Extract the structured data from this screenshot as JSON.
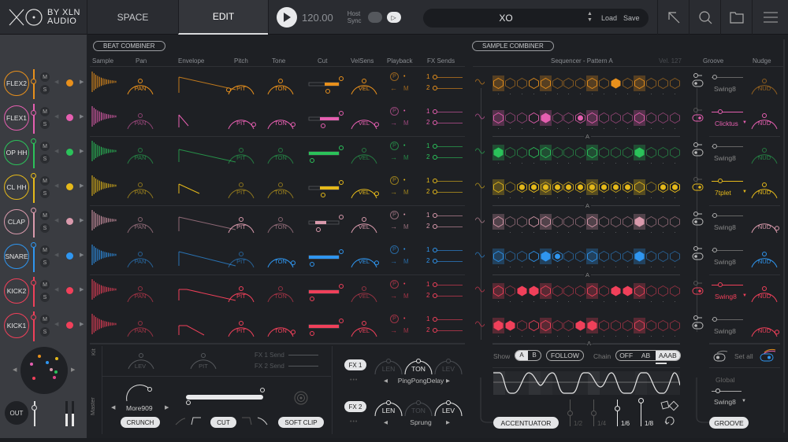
{
  "header": {
    "logo": "XO",
    "by_line_1": "BY XLN",
    "by_line_2": "AUDIO",
    "tabs": [
      {
        "label": "SPACE",
        "active": false
      },
      {
        "label": "EDIT",
        "active": true
      }
    ],
    "tempo": "120.00",
    "host_sync_line1": "Host",
    "host_sync_line2": "Sync",
    "preset_name": "XO",
    "load_label": "Load",
    "save_label": "Save",
    "icons": [
      "export-arrow-icon",
      "search-icon",
      "folder-icon",
      "menu-icon"
    ]
  },
  "beat_combiner": {
    "button_label": "BEAT COMBINER",
    "columns": [
      "Sample",
      "Pan",
      "Envelope",
      "Pitch",
      "Tone",
      "Cut",
      "VelSens",
      "Playback",
      "FX Sends"
    ]
  },
  "sample_combiner": {
    "button_label": "SAMPLE COMBINER",
    "sequencer_title": "Sequencer - Pattern A",
    "velocity": "Vel. 127",
    "groove_header": "Groove",
    "nudge_header": "Nudge"
  },
  "knob_labels": {
    "pan": "PAN",
    "pitch": "PIT",
    "tone": "TON",
    "vel": "VEL",
    "nudge": "NUD",
    "mute": "M",
    "solo": "S",
    "send1": "1",
    "send2": "2",
    "playback_m": "M",
    "playback_p": "P"
  },
  "channels": [
    {
      "name": "FLEX2",
      "color": "#e8901c",
      "groove": "Swing8",
      "groove_active": false,
      "steps": [
        2,
        0,
        0,
        1,
        2,
        0,
        0,
        0,
        2,
        0,
        3,
        0,
        2,
        0,
        0,
        0
      ]
    },
    {
      "name": "FLEX1",
      "color": "#e55fb0",
      "groove": "Clicktus",
      "groove_active": true,
      "steps": [
        2,
        0,
        0,
        1,
        3,
        0,
        0,
        4,
        2,
        0,
        0,
        0,
        2,
        0,
        0,
        0
      ]
    },
    {
      "name": "OP HH",
      "color": "#2bc25a",
      "groove": "Swing8",
      "groove_active": false,
      "steps": [
        3,
        0,
        0,
        1,
        2,
        0,
        0,
        0,
        2,
        0,
        0,
        0,
        3,
        0,
        0,
        0
      ]
    },
    {
      "name": "CL HH",
      "color": "#e5b91a",
      "groove": "7tplet",
      "groove_active": true,
      "steps": [
        2,
        0,
        4,
        5,
        4,
        4,
        4,
        4,
        4,
        4,
        4,
        4,
        2,
        0,
        4,
        5
      ]
    },
    {
      "name": "CLAP",
      "color": "#d99aac",
      "groove": "Swing8",
      "groove_active": false,
      "steps": [
        2,
        0,
        0,
        1,
        2,
        0,
        0,
        0,
        2,
        0,
        0,
        0,
        3,
        0,
        0,
        0
      ]
    },
    {
      "name": "SNARE",
      "color": "#2f96f0",
      "groove": "Swing8",
      "groove_active": false,
      "steps": [
        2,
        0,
        0,
        1,
        3,
        4,
        0,
        0,
        2,
        0,
        0,
        0,
        3,
        0,
        0,
        0
      ]
    },
    {
      "name": "KICK2",
      "color": "#f0405a",
      "groove": "Swing8",
      "groove_active": true,
      "steps": [
        2,
        0,
        3,
        3,
        2,
        0,
        0,
        0,
        2,
        0,
        3,
        3,
        2,
        0,
        0,
        0
      ]
    },
    {
      "name": "KICK1",
      "color": "#f0405a",
      "groove": "Swing8",
      "groove_active": false,
      "steps": [
        3,
        3,
        0,
        1,
        2,
        0,
        0,
        3,
        3,
        0,
        0,
        0,
        2,
        0,
        0,
        0
      ]
    }
  ],
  "pattern_markers": [
    "A",
    "A",
    "A",
    "A"
  ],
  "kit": {
    "label": "Kit",
    "lev": "LEV",
    "pit": "PIT",
    "fx1_send": "FX 1 Send",
    "fx2_send": "FX 2 Send"
  },
  "master": {
    "label": "Master",
    "preset": "More909",
    "crunch": "CRUNCH",
    "cut": "CUT",
    "soft_clip": "SOFT CLIP"
  },
  "fx": [
    {
      "button": "FX 1",
      "knobs": [
        "LEN",
        "TON",
        "LEV"
      ],
      "active": [
        false,
        true,
        false
      ],
      "effect": "PingPongDelay"
    },
    {
      "button": "FX 2",
      "knobs": [
        "LEN",
        "TON",
        "LEV"
      ],
      "active": [
        true,
        false,
        true
      ],
      "effect": "Sprung"
    }
  ],
  "accentuator": {
    "show_label": "Show",
    "show_options": [
      "A",
      "B"
    ],
    "show_selected": "A",
    "follow": "FOLLOW",
    "chain_label": "Chain",
    "chain_options": [
      "OFF",
      "AB",
      "AAAB"
    ],
    "chain_selected": "AAAB",
    "rates": [
      "1/2",
      "1/4",
      "1/6",
      "1/8"
    ],
    "button": "ACCENTUATOR"
  },
  "groove_panel": {
    "set_all": "Set all",
    "global_label": "Global",
    "global_groove": "Swing8",
    "button": "GROOVE"
  },
  "mixer": {
    "out_label": "OUT"
  }
}
